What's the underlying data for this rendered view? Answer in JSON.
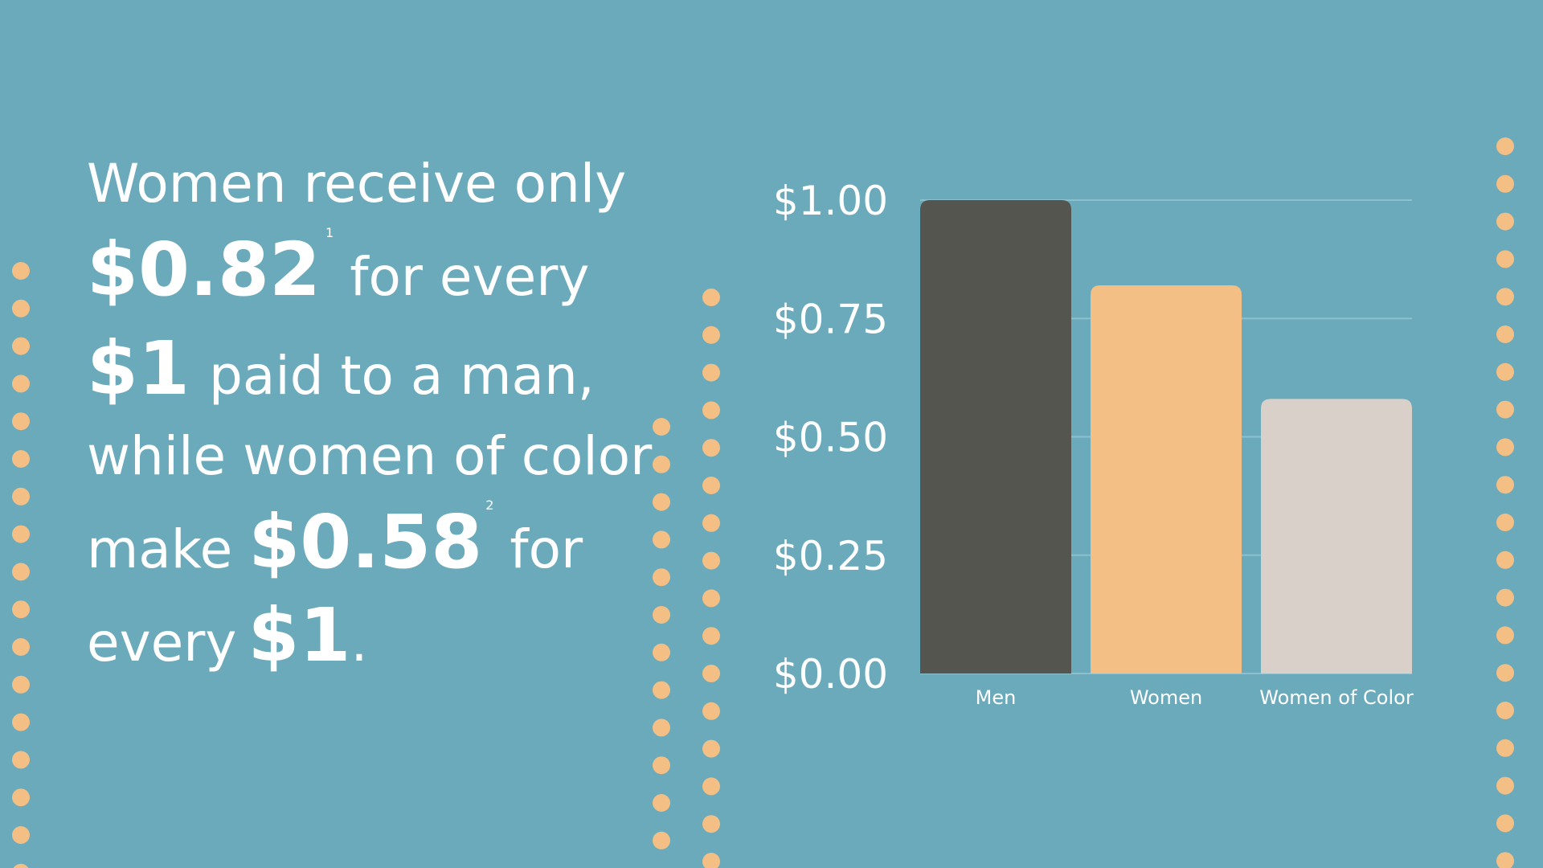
{
  "statement": [
    [
      "Women receive only"
    ],
    [
      "$0.82",
      "1",
      "for every"
    ],
    [
      "$1",
      "paid to a man,"
    ],
    [
      "while women of color"
    ],
    [
      "make",
      "$0.58",
      "2",
      "for"
    ],
    [
      "every",
      "$1",
      "."
    ]
  ],
  "chart_data": {
    "type": "bar",
    "categories": [
      "Men",
      "Women",
      "Women of Color"
    ],
    "values": [
      1.0,
      0.82,
      0.58
    ],
    "colors": [
      "#555550",
      "#f3bf85",
      "#d8d0c9"
    ],
    "ylim": [
      0,
      1
    ],
    "yticks": [
      {
        "value": 0,
        "label": "$0.00"
      },
      {
        "value": 0.25,
        "label": "$0.25"
      },
      {
        "value": 0.5,
        "label": "$0.50"
      },
      {
        "value": 0.75,
        "label": "$0.75"
      },
      {
        "value": 1,
        "label": "$1.00"
      }
    ],
    "grid": true
  }
}
